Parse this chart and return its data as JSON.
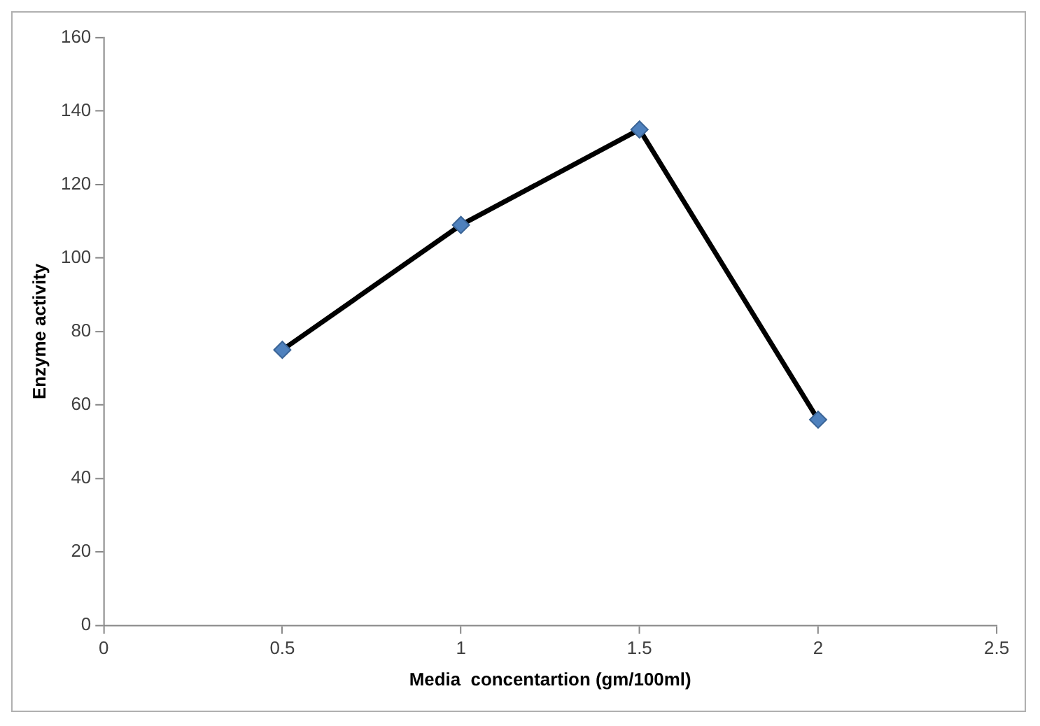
{
  "chart_data": {
    "type": "line",
    "xlabel": "Media  concentartion (gm/100ml)",
    "ylabel": "Enzyme activity",
    "x": [
      0.5,
      1,
      1.5,
      2
    ],
    "series": [
      {
        "color": "#000000",
        "values": [
          75,
          109,
          135,
          56
        ]
      }
    ],
    "xlim": [
      0,
      2.5
    ],
    "xticks": [
      0,
      0.5,
      1,
      1.5,
      2,
      2.5
    ],
    "ylim": [
      0,
      160
    ],
    "yticks": [
      0,
      20,
      40,
      60,
      80,
      100,
      120,
      140,
      160
    ],
    "grid": false,
    "legend": false,
    "marker": "diamond",
    "line_style": "solid"
  }
}
